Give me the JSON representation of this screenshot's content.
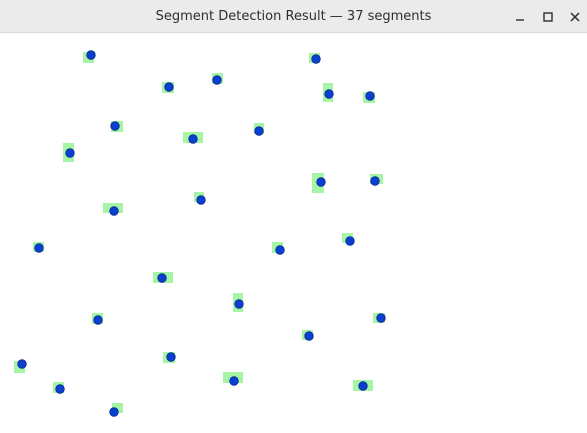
{
  "window": {
    "title": "Segment Detection Result — 37 segments"
  },
  "icons": {
    "minimize": "minimize-icon",
    "maximize": "maximize-icon",
    "close": "close-icon"
  },
  "colors": {
    "segment_box": "#a6f5a6",
    "point": "#0a3fd0",
    "point_stroke": "#072c96"
  }
}
